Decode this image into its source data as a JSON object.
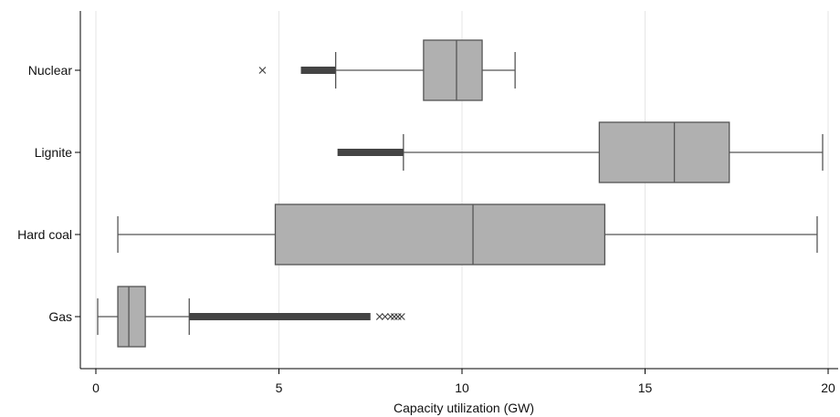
{
  "chart_data": {
    "type": "boxplot",
    "orientation": "horizontal",
    "xlabel": "Capacity utilization (GW)",
    "xlim": [
      0,
      20
    ],
    "xticks": [
      0,
      5,
      10,
      15,
      20
    ],
    "grid": "vertical",
    "box_color": "#b0b0b0",
    "line_color": "#555555",
    "outlier_marker": "x",
    "categories": [
      "Nuclear",
      "Lignite",
      "Hard coal",
      "Gas"
    ],
    "series": [
      {
        "name": "Nuclear",
        "whisker_low": 6.55,
        "q1": 8.95,
        "median": 9.85,
        "q3": 10.55,
        "whisker_high": 11.45,
        "outliers": [
          4.55
        ],
        "outlier_bands": [
          [
            5.6,
            6.55
          ]
        ]
      },
      {
        "name": "Lignite",
        "whisker_low": 8.4,
        "q1": 13.75,
        "median": 15.8,
        "q3": 17.3,
        "whisker_high": 19.85,
        "outliers": [],
        "outlier_bands": [
          [
            6.6,
            8.4
          ]
        ]
      },
      {
        "name": "Hard coal",
        "whisker_low": 0.6,
        "q1": 4.9,
        "median": 10.3,
        "q3": 13.9,
        "whisker_high": 19.7,
        "outliers": [],
        "outlier_bands": []
      },
      {
        "name": "Gas",
        "whisker_low": 0.05,
        "q1": 0.6,
        "median": 0.9,
        "q3": 1.35,
        "whisker_high": 2.55,
        "outliers": [
          7.75,
          7.9,
          8.05,
          8.15,
          8.25,
          8.35
        ],
        "outlier_bands": [
          [
            2.55,
            7.5
          ]
        ]
      }
    ]
  }
}
